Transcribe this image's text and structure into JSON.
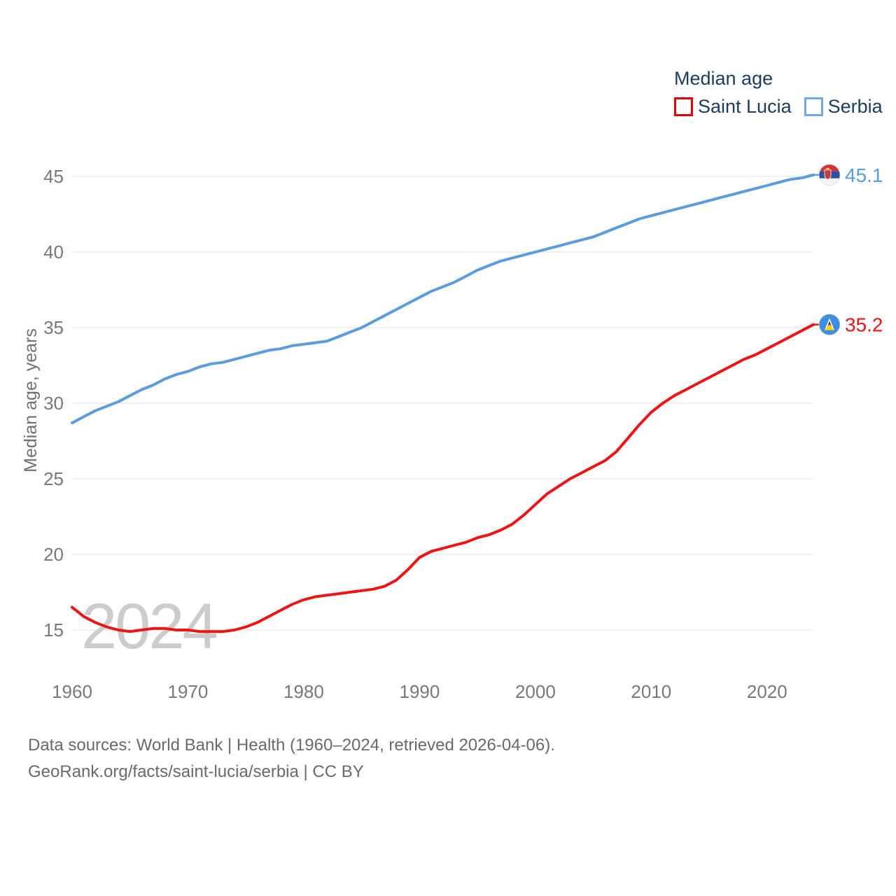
{
  "legend": {
    "title": "Median age",
    "items": [
      {
        "label": "Saint Lucia",
        "color": "#e60000"
      },
      {
        "label": "Serbia",
        "color": "#74a9e6"
      }
    ]
  },
  "footer": {
    "line1": "Data sources: World Bank | Health (1960–2024, retrieved 2026-04-06).",
    "line2": "GeoRank.org/facts/saint-lucia/serbia | CC BY"
  },
  "chart_data": {
    "type": "line",
    "title": "Median age",
    "ylabel": "Median age, years",
    "watermark": "2024",
    "xlim": [
      1960,
      2024
    ],
    "ylim": [
      15,
      45
    ],
    "x_ticks": [
      1960,
      1970,
      1980,
      1990,
      2000,
      2010,
      2020
    ],
    "y_ticks": [
      15,
      20,
      25,
      30,
      35,
      40,
      45
    ],
    "grid": true,
    "legend_position": "top-right",
    "x_start": 1960,
    "x_step": 1,
    "series": [
      {
        "name": "Saint Lucia",
        "color": "#ee1414",
        "end_label": "35.2",
        "flag": "saint-lucia",
        "values": [
          16.5,
          15.9,
          15.5,
          15.2,
          15.0,
          14.9,
          15.0,
          15.1,
          15.1,
          15.0,
          15.0,
          14.9,
          14.9,
          14.9,
          15.0,
          15.2,
          15.5,
          15.9,
          16.3,
          16.7,
          17.0,
          17.2,
          17.3,
          17.4,
          17.5,
          17.6,
          17.7,
          17.9,
          18.3,
          19.0,
          19.8,
          20.2,
          20.4,
          20.6,
          20.8,
          21.1,
          21.3,
          21.6,
          22.0,
          22.6,
          23.3,
          24.0,
          24.5,
          25.0,
          25.4,
          25.8,
          26.2,
          26.8,
          27.7,
          28.6,
          29.4,
          30.0,
          30.5,
          30.9,
          31.3,
          31.7,
          32.1,
          32.5,
          32.9,
          33.2,
          33.6,
          34.0,
          34.4,
          34.8,
          35.2
        ]
      },
      {
        "name": "Serbia",
        "color": "#5b9be0",
        "end_label": "45.1",
        "flag": "serbia",
        "values": [
          28.7,
          29.1,
          29.5,
          29.8,
          30.1,
          30.5,
          30.9,
          31.2,
          31.6,
          31.9,
          32.1,
          32.4,
          32.6,
          32.7,
          32.9,
          33.1,
          33.3,
          33.5,
          33.6,
          33.8,
          33.9,
          34.0,
          34.1,
          34.4,
          34.7,
          35.0,
          35.4,
          35.8,
          36.2,
          36.6,
          37.0,
          37.4,
          37.7,
          38.0,
          38.4,
          38.8,
          39.1,
          39.4,
          39.6,
          39.8,
          40.0,
          40.2,
          40.4,
          40.6,
          40.8,
          41.0,
          41.3,
          41.6,
          41.9,
          42.2,
          42.4,
          42.6,
          42.8,
          43.0,
          43.2,
          43.4,
          43.6,
          43.8,
          44.0,
          44.2,
          44.4,
          44.6,
          44.8,
          44.9,
          45.1
        ]
      }
    ]
  }
}
